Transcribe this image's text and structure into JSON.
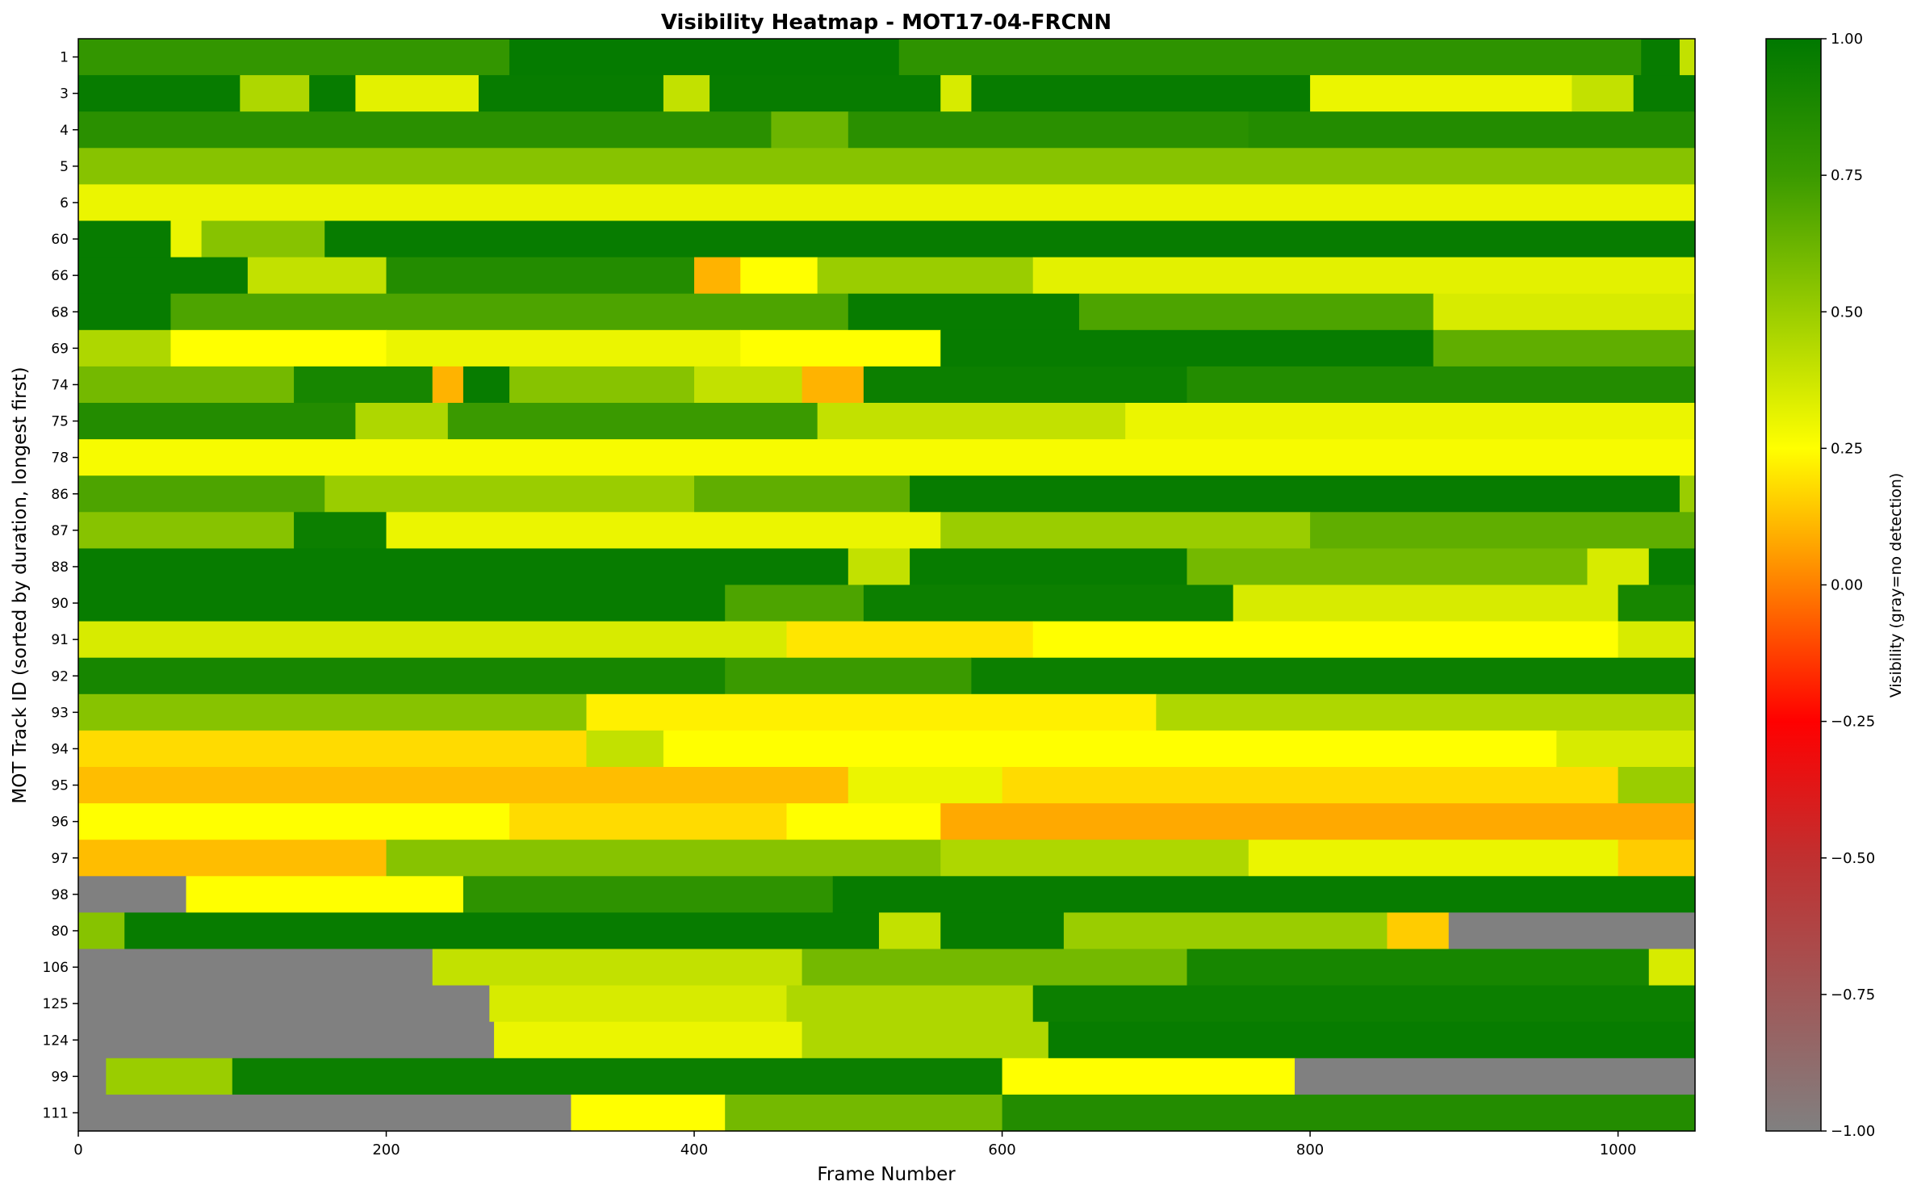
{
  "chart_data": {
    "type": "heatmap",
    "title": "Visibility Heatmap - MOT17-04-FRCNN",
    "xlabel": "Frame Number",
    "ylabel": "MOT Track ID (sorted by duration, longest first)",
    "xlim": [
      0,
      1050
    ],
    "x_ticks": [
      0,
      200,
      400,
      600,
      800,
      1000
    ],
    "colorbar": {
      "label": "Visibility (gray=no detection)",
      "range": [
        -1.0,
        1.0
      ],
      "ticks": [
        "1.00",
        "0.75",
        "0.50",
        "0.25",
        "0.00",
        "−0.25",
        "−0.50",
        "−0.75",
        "−1.00"
      ],
      "tick_values": [
        1.0,
        0.75,
        0.5,
        0.25,
        0.0,
        -0.25,
        -0.5,
        -0.75,
        -1.0
      ],
      "colors": [
        {
          "v": -1.0,
          "c": "#808080"
        },
        {
          "v": -0.5,
          "c": "#c03030"
        },
        {
          "v": -0.25,
          "c": "#ff0000"
        },
        {
          "v": 0.0,
          "c": "#ff8000"
        },
        {
          "v": 0.25,
          "c": "#ffff00"
        },
        {
          "v": 0.5,
          "c": "#9acd00"
        },
        {
          "v": 0.75,
          "c": "#3a9a00"
        },
        {
          "v": 1.0,
          "c": "#007800"
        }
      ]
    },
    "no_detection_value": -1.0,
    "tracks": [
      {
        "id": "1",
        "segments": [
          [
            0,
            280,
            0.78
          ],
          [
            280,
            533,
            0.98
          ],
          [
            533,
            1015,
            0.8
          ],
          [
            1015,
            1040,
            0.97
          ],
          [
            1040,
            1050,
            0.4
          ]
        ]
      },
      {
        "id": "3",
        "segments": [
          [
            0,
            105,
            0.97
          ],
          [
            105,
            150,
            0.45
          ],
          [
            150,
            180,
            0.97
          ],
          [
            180,
            260,
            0.32
          ],
          [
            260,
            380,
            0.97
          ],
          [
            380,
            410,
            0.4
          ],
          [
            410,
            560,
            0.97
          ],
          [
            560,
            580,
            0.35
          ],
          [
            580,
            800,
            0.97
          ],
          [
            800,
            970,
            0.3
          ],
          [
            970,
            1010,
            0.4
          ],
          [
            1010,
            1050,
            0.97
          ]
        ]
      },
      {
        "id": "4",
        "segments": [
          [
            0,
            450,
            0.82
          ],
          [
            450,
            500,
            0.62
          ],
          [
            500,
            760,
            0.82
          ],
          [
            760,
            1050,
            0.85
          ]
        ]
      },
      {
        "id": "5",
        "segments": [
          [
            0,
            1050,
            0.55
          ]
        ]
      },
      {
        "id": "6",
        "segments": [
          [
            0,
            1050,
            0.3
          ]
        ]
      },
      {
        "id": "60",
        "segments": [
          [
            0,
            60,
            0.97
          ],
          [
            60,
            80,
            0.3
          ],
          [
            80,
            160,
            0.55
          ],
          [
            160,
            1050,
            0.97
          ]
        ]
      },
      {
        "id": "66",
        "segments": [
          [
            0,
            110,
            0.97
          ],
          [
            110,
            200,
            0.4
          ],
          [
            200,
            400,
            0.85
          ],
          [
            400,
            430,
            0.1
          ],
          [
            430,
            480,
            0.25
          ],
          [
            480,
            620,
            0.5
          ],
          [
            620,
            1050,
            0.32
          ]
        ]
      },
      {
        "id": "68",
        "segments": [
          [
            0,
            60,
            0.97
          ],
          [
            60,
            500,
            0.7
          ],
          [
            500,
            650,
            0.97
          ],
          [
            650,
            880,
            0.7
          ],
          [
            880,
            1050,
            0.35
          ]
        ]
      },
      {
        "id": "69",
        "segments": [
          [
            0,
            60,
            0.45
          ],
          [
            60,
            200,
            0.25
          ],
          [
            200,
            430,
            0.3
          ],
          [
            430,
            560,
            0.25
          ],
          [
            560,
            880,
            0.97
          ],
          [
            880,
            1050,
            0.65
          ]
        ]
      },
      {
        "id": "74",
        "segments": [
          [
            0,
            140,
            0.6
          ],
          [
            140,
            230,
            0.9
          ],
          [
            230,
            250,
            0.1
          ],
          [
            250,
            280,
            0.97
          ],
          [
            280,
            400,
            0.55
          ],
          [
            400,
            470,
            0.4
          ],
          [
            470,
            510,
            0.1
          ],
          [
            510,
            720,
            0.95
          ],
          [
            720,
            1050,
            0.85
          ]
        ]
      },
      {
        "id": "75",
        "segments": [
          [
            0,
            180,
            0.85
          ],
          [
            180,
            240,
            0.45
          ],
          [
            240,
            480,
            0.75
          ],
          [
            480,
            680,
            0.4
          ],
          [
            680,
            1050,
            0.3
          ]
        ]
      },
      {
        "id": "78",
        "segments": [
          [
            0,
            1050,
            0.27
          ]
        ]
      },
      {
        "id": "86",
        "segments": [
          [
            0,
            160,
            0.7
          ],
          [
            160,
            400,
            0.5
          ],
          [
            400,
            540,
            0.65
          ],
          [
            540,
            1040,
            0.97
          ],
          [
            1040,
            1050,
            0.5
          ]
        ]
      },
      {
        "id": "87",
        "segments": [
          [
            0,
            140,
            0.55
          ],
          [
            140,
            200,
            0.95
          ],
          [
            200,
            560,
            0.3
          ],
          [
            560,
            800,
            0.5
          ],
          [
            800,
            1050,
            0.65
          ]
        ]
      },
      {
        "id": "88",
        "segments": [
          [
            0,
            500,
            0.97
          ],
          [
            500,
            540,
            0.4
          ],
          [
            540,
            720,
            0.97
          ],
          [
            720,
            980,
            0.6
          ],
          [
            980,
            1020,
            0.35
          ],
          [
            1020,
            1050,
            0.97
          ]
        ]
      },
      {
        "id": "90",
        "segments": [
          [
            0,
            420,
            0.97
          ],
          [
            420,
            510,
            0.7
          ],
          [
            510,
            750,
            0.95
          ],
          [
            750,
            1000,
            0.35
          ],
          [
            1000,
            1050,
            0.9
          ]
        ]
      },
      {
        "id": "91",
        "segments": [
          [
            0,
            460,
            0.35
          ],
          [
            460,
            620,
            0.2
          ],
          [
            620,
            1000,
            0.25
          ],
          [
            1000,
            1050,
            0.35
          ]
        ]
      },
      {
        "id": "92",
        "segments": [
          [
            0,
            420,
            0.9
          ],
          [
            420,
            580,
            0.75
          ],
          [
            580,
            1050,
            0.95
          ]
        ]
      },
      {
        "id": "93",
        "segments": [
          [
            0,
            330,
            0.55
          ],
          [
            330,
            700,
            0.22
          ],
          [
            700,
            1050,
            0.45
          ]
        ]
      },
      {
        "id": "94",
        "segments": [
          [
            0,
            330,
            0.18
          ],
          [
            330,
            380,
            0.4
          ],
          [
            380,
            960,
            0.25
          ],
          [
            960,
            1050,
            0.35
          ]
        ]
      },
      {
        "id": "95",
        "segments": [
          [
            0,
            500,
            0.12
          ],
          [
            500,
            600,
            0.3
          ],
          [
            600,
            1000,
            0.18
          ],
          [
            1000,
            1050,
            0.5
          ]
        ]
      },
      {
        "id": "96",
        "segments": [
          [
            0,
            280,
            0.25
          ],
          [
            280,
            460,
            0.18
          ],
          [
            460,
            560,
            0.25
          ],
          [
            560,
            1050,
            0.08
          ]
        ]
      },
      {
        "id": "97",
        "segments": [
          [
            0,
            200,
            0.12
          ],
          [
            200,
            560,
            0.55
          ],
          [
            560,
            760,
            0.45
          ],
          [
            760,
            1000,
            0.3
          ],
          [
            1000,
            1050,
            0.15
          ]
        ]
      },
      {
        "id": "98",
        "segments": [
          [
            0,
            70,
            -1.0
          ],
          [
            70,
            250,
            0.25
          ],
          [
            250,
            490,
            0.8
          ],
          [
            490,
            1050,
            0.97
          ]
        ]
      },
      {
        "id": "80",
        "segments": [
          [
            0,
            30,
            0.55
          ],
          [
            30,
            520,
            0.97
          ],
          [
            520,
            560,
            0.4
          ],
          [
            560,
            640,
            0.97
          ],
          [
            640,
            850,
            0.5
          ],
          [
            850,
            890,
            0.15
          ],
          [
            890,
            1050,
            -1.0
          ]
        ]
      },
      {
        "id": "106",
        "segments": [
          [
            0,
            230,
            -1.0
          ],
          [
            230,
            470,
            0.4
          ],
          [
            470,
            720,
            0.6
          ],
          [
            720,
            1020,
            0.9
          ],
          [
            1020,
            1050,
            0.35
          ]
        ]
      },
      {
        "id": "125",
        "segments": [
          [
            0,
            267,
            -1.0
          ],
          [
            267,
            460,
            0.35
          ],
          [
            460,
            620,
            0.45
          ],
          [
            620,
            1050,
            0.95
          ]
        ]
      },
      {
        "id": "124",
        "segments": [
          [
            0,
            270,
            -1.0
          ],
          [
            270,
            470,
            0.3
          ],
          [
            470,
            630,
            0.45
          ],
          [
            630,
            1050,
            0.97
          ]
        ]
      },
      {
        "id": "99",
        "segments": [
          [
            0,
            18,
            -1.0
          ],
          [
            18,
            100,
            0.5
          ],
          [
            100,
            600,
            0.95
          ],
          [
            600,
            790,
            0.25
          ],
          [
            790,
            1050,
            -1.0
          ]
        ]
      },
      {
        "id": "111",
        "segments": [
          [
            0,
            320,
            -1.0
          ],
          [
            320,
            420,
            0.25
          ],
          [
            420,
            600,
            0.6
          ],
          [
            600,
            1050,
            0.85
          ]
        ]
      }
    ]
  }
}
